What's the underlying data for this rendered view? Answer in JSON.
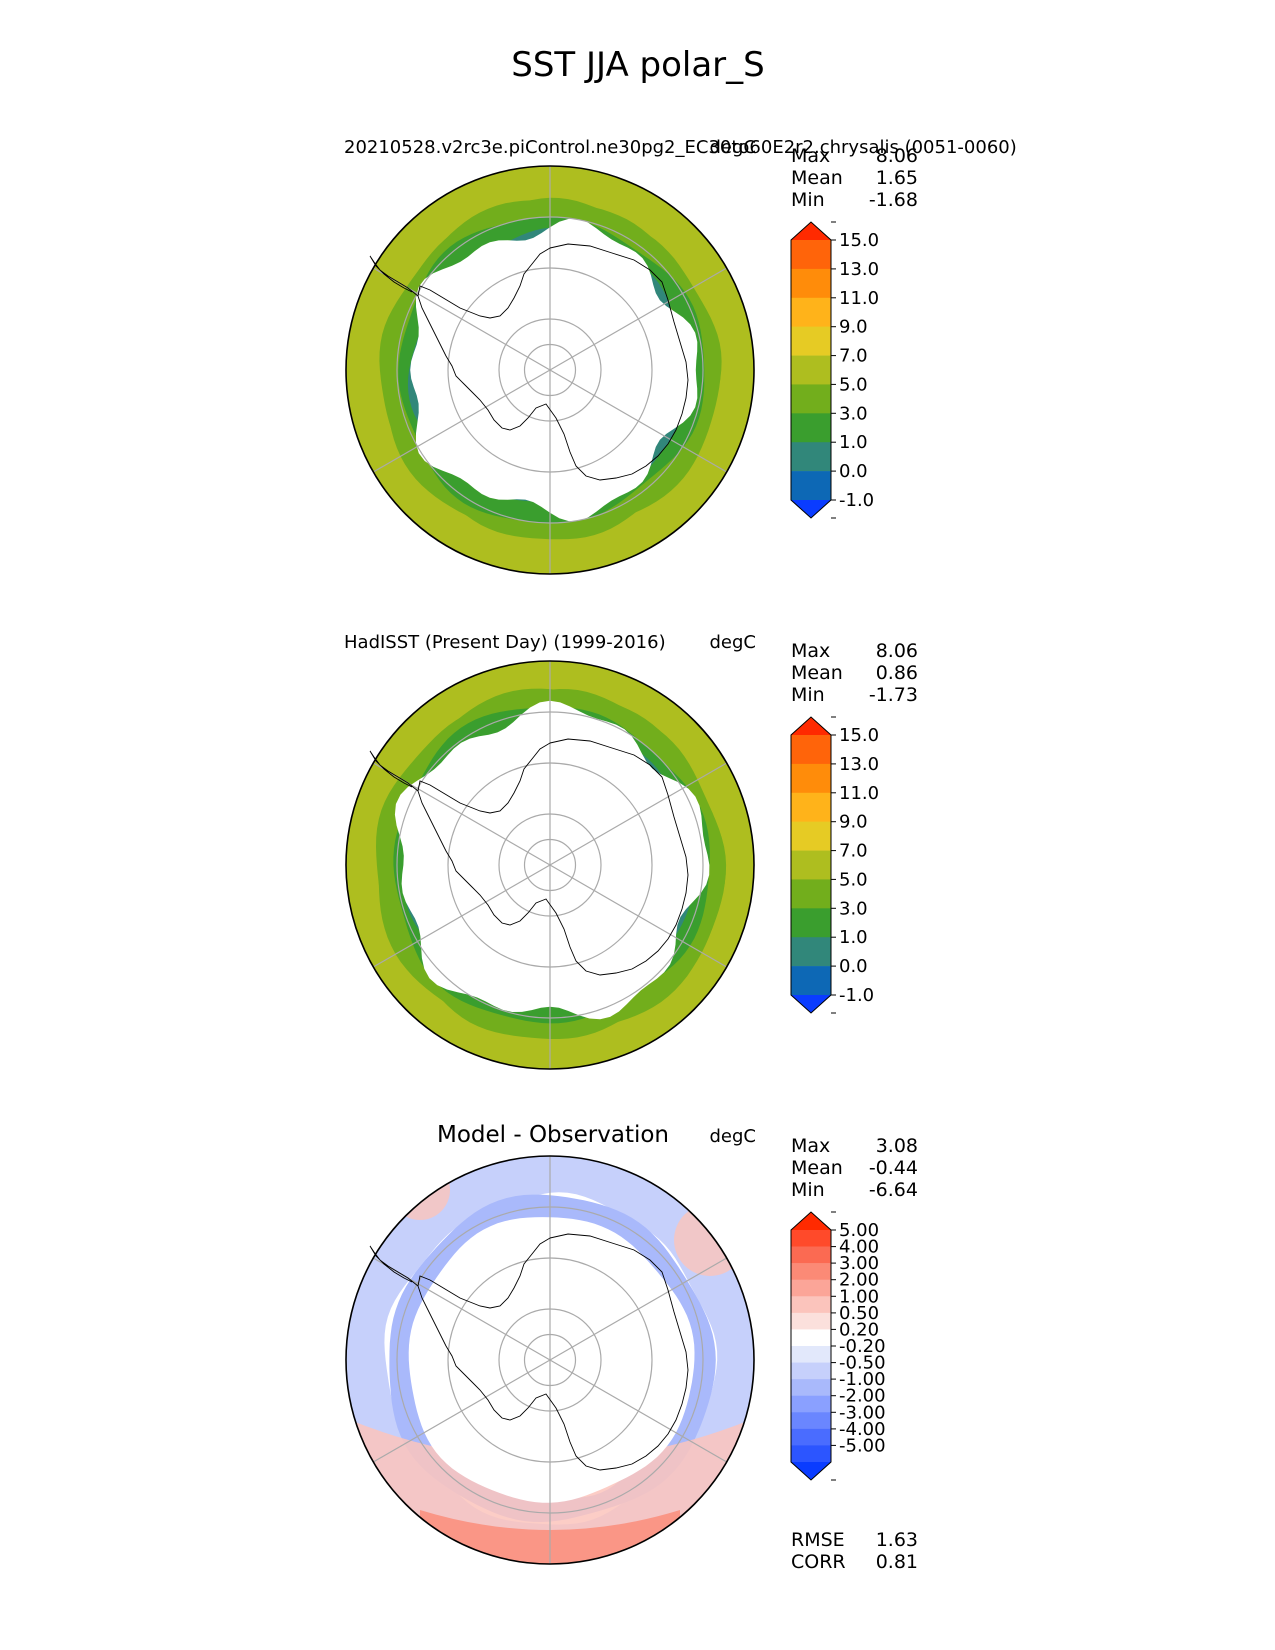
{
  "figure": {
    "title": "SST JJA polar_S"
  },
  "colors": {
    "sst": [
      "#0a3cff",
      "#0d68b5",
      "#31877a",
      "#3a9e2e",
      "#72ae1c",
      "#aebe1f",
      "#e6cb24",
      "#ffb31a",
      "#ff8c0a",
      "#ff640a",
      "#ff2a00"
    ],
    "diff": [
      "#0a3cff",
      "#2c55ff",
      "#4a6cff",
      "#6a86ff",
      "#8aa0ff",
      "#a9b9fb",
      "#c6d0fb",
      "#e2e8fb",
      "#ffffff",
      "#fbe0dc",
      "#fbc4bc",
      "#fba598",
      "#fb8a76",
      "#fb6a52",
      "#ff4a2a",
      "#ff2a00"
    ]
  },
  "panels": [
    {
      "title": "20210528.v2rc3e.piControl.ne30pg2_EC30to60E2r2.chrysalis (0051-0060)",
      "units": "degC",
      "stats": [
        {
          "label": "Max",
          "value": "8.06"
        },
        {
          "label": "Mean",
          "value": "1.65"
        },
        {
          "label": "Min",
          "value": "-1.68"
        }
      ],
      "colorbar": {
        "ticks": [
          "15.0",
          "13.0",
          "11.0",
          "9.0",
          "7.0",
          "5.0",
          "3.0",
          "1.0",
          "0.0",
          "-1.0"
        ]
      },
      "map": {
        "type": "sst",
        "ice_edge_lat": -62,
        "pattern": "model"
      }
    },
    {
      "title": "HadISST (Present Day) (1999-2016)",
      "units": "degC",
      "stats": [
        {
          "label": "Max",
          "value": "8.06"
        },
        {
          "label": "Mean",
          "value": "0.86"
        },
        {
          "label": "Min",
          "value": "-1.73"
        }
      ],
      "colorbar": {
        "ticks": [
          "15.0",
          "13.0",
          "11.0",
          "9.0",
          "7.0",
          "5.0",
          "3.0",
          "1.0",
          "0.0",
          "-1.0"
        ]
      },
      "map": {
        "type": "sst",
        "ice_edge_lat": -60,
        "pattern": "obs"
      }
    },
    {
      "title": "Model - Observation",
      "units": "degC",
      "stats": [
        {
          "label": "Max",
          "value": "3.08"
        },
        {
          "label": "Mean",
          "value": "-0.44"
        },
        {
          "label": "Min",
          "value": "-6.64"
        }
      ],
      "colorbar": {
        "ticks": [
          "5.00",
          "4.00",
          "3.00",
          "2.00",
          "1.00",
          "0.50",
          "0.20",
          "-0.20",
          "-0.50",
          "-1.00",
          "-2.00",
          "-3.00",
          "-4.00",
          "-5.00"
        ]
      },
      "map": {
        "type": "diff",
        "pattern": "diff"
      },
      "extra_stats": [
        {
          "label": "RMSE",
          "value": "1.63"
        },
        {
          "label": "CORR",
          "value": "0.81"
        }
      ]
    }
  ]
}
